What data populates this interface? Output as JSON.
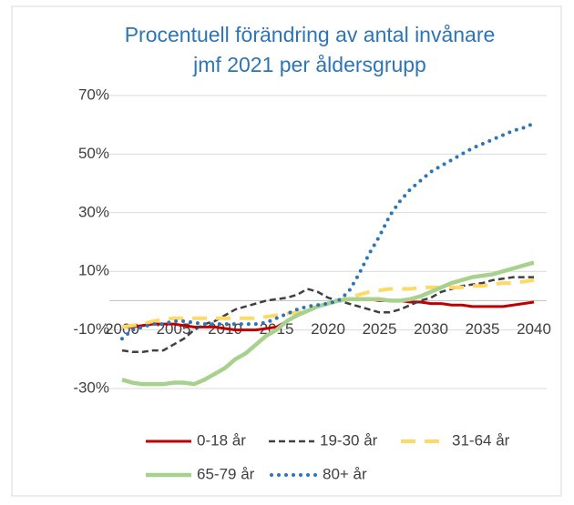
{
  "chart_data": {
    "type": "line",
    "title": "Procentuell förändring av antal invånare jmf 2021 per åldersgrupp",
    "x": [
      2000,
      2001,
      2002,
      2003,
      2004,
      2005,
      2006,
      2007,
      2008,
      2009,
      2010,
      2011,
      2012,
      2013,
      2014,
      2015,
      2016,
      2017,
      2018,
      2019,
      2020,
      2021,
      2022,
      2023,
      2024,
      2025,
      2026,
      2027,
      2028,
      2029,
      2030,
      2031,
      2032,
      2033,
      2034,
      2035,
      2036,
      2037,
      2038,
      2039,
      2040
    ],
    "xlim": [
      2000,
      2040
    ],
    "xticks": [
      2000,
      2005,
      2010,
      2015,
      2020,
      2025,
      2030,
      2035,
      2040
    ],
    "ylim": [
      -30,
      70
    ],
    "yticks": [
      {
        "value": -30,
        "label": "-30%"
      },
      {
        "value": -10,
        "label": "-10%"
      },
      {
        "value": 10,
        "label": "10%"
      },
      {
        "value": 30,
        "label": "30%"
      },
      {
        "value": 50,
        "label": "50%"
      },
      {
        "value": 70,
        "label": "70%"
      }
    ],
    "grid": true,
    "legend": "bottom",
    "series": [
      {
        "name": "0-18 år",
        "color": "#c00000",
        "values": [
          -9,
          -9,
          -8.5,
          -8,
          -8,
          -8,
          -8.5,
          -9,
          -9,
          -9,
          -9.5,
          -10,
          -10,
          -10,
          -9.5,
          -9,
          -7,
          -5,
          -3.5,
          -2,
          -1,
          0,
          0.5,
          0.5,
          0.5,
          0,
          0,
          0,
          -0.5,
          -0.5,
          -1,
          -1,
          -1.5,
          -1.5,
          -2,
          -2,
          -2,
          -2,
          -1.5,
          -1,
          -0.5
        ]
      },
      {
        "name": "19-30 år",
        "color": "#404040",
        "values": [
          -17,
          -17.5,
          -17.5,
          -17,
          -17,
          -15,
          -13,
          -10,
          -8,
          -7,
          -5,
          -3,
          -2,
          -1,
          0,
          0.5,
          1,
          2,
          4,
          3,
          1,
          0,
          -1,
          -2,
          -3,
          -4,
          -4,
          -3,
          -1.5,
          0,
          1,
          3,
          4,
          5,
          5.5,
          6,
          7,
          7.5,
          8,
          8,
          8
        ]
      },
      {
        "name": "31-64 år",
        "color": "#ffd966",
        "values": [
          -9,
          -8.5,
          -8,
          -7,
          -6.5,
          -6,
          -6,
          -6,
          -6,
          -6,
          -6,
          -6,
          -6,
          -6,
          -5.5,
          -5,
          -4.5,
          -4,
          -3,
          -2,
          -1,
          0,
          1,
          2,
          3,
          3.5,
          4,
          4,
          4,
          4.5,
          4.5,
          4.5,
          4.5,
          4.5,
          5,
          5,
          5.5,
          6,
          6,
          6.5,
          7
        ]
      },
      {
        "name": "65-79 år",
        "color": "#a9d18e",
        "values": [
          -27,
          -28,
          -28.5,
          -28.5,
          -28.5,
          -28,
          -28,
          -28.5,
          -27,
          -25,
          -23,
          -20,
          -18,
          -15,
          -12,
          -10,
          -7,
          -5,
          -3.5,
          -2,
          -1,
          0,
          0.5,
          0.5,
          0.5,
          0.5,
          0,
          0,
          0.5,
          1.5,
          3,
          4.5,
          6,
          7,
          8,
          8.5,
          9,
          10,
          11,
          12,
          13
        ]
      },
      {
        "name": "80+ år",
        "color": "#2e75b6",
        "values": [
          -13,
          -10,
          -9,
          -8,
          -8,
          -7,
          -7,
          -7.5,
          -8,
          -8,
          -8,
          -8,
          -8,
          -8,
          -7.5,
          -6,
          -4.5,
          -3,
          -2,
          -1.5,
          -1,
          0,
          3,
          9,
          16,
          22,
          29,
          34,
          38,
          41,
          44,
          46,
          48,
          50,
          52,
          53.5,
          55,
          56.5,
          58,
          59,
          60.5
        ]
      }
    ]
  }
}
